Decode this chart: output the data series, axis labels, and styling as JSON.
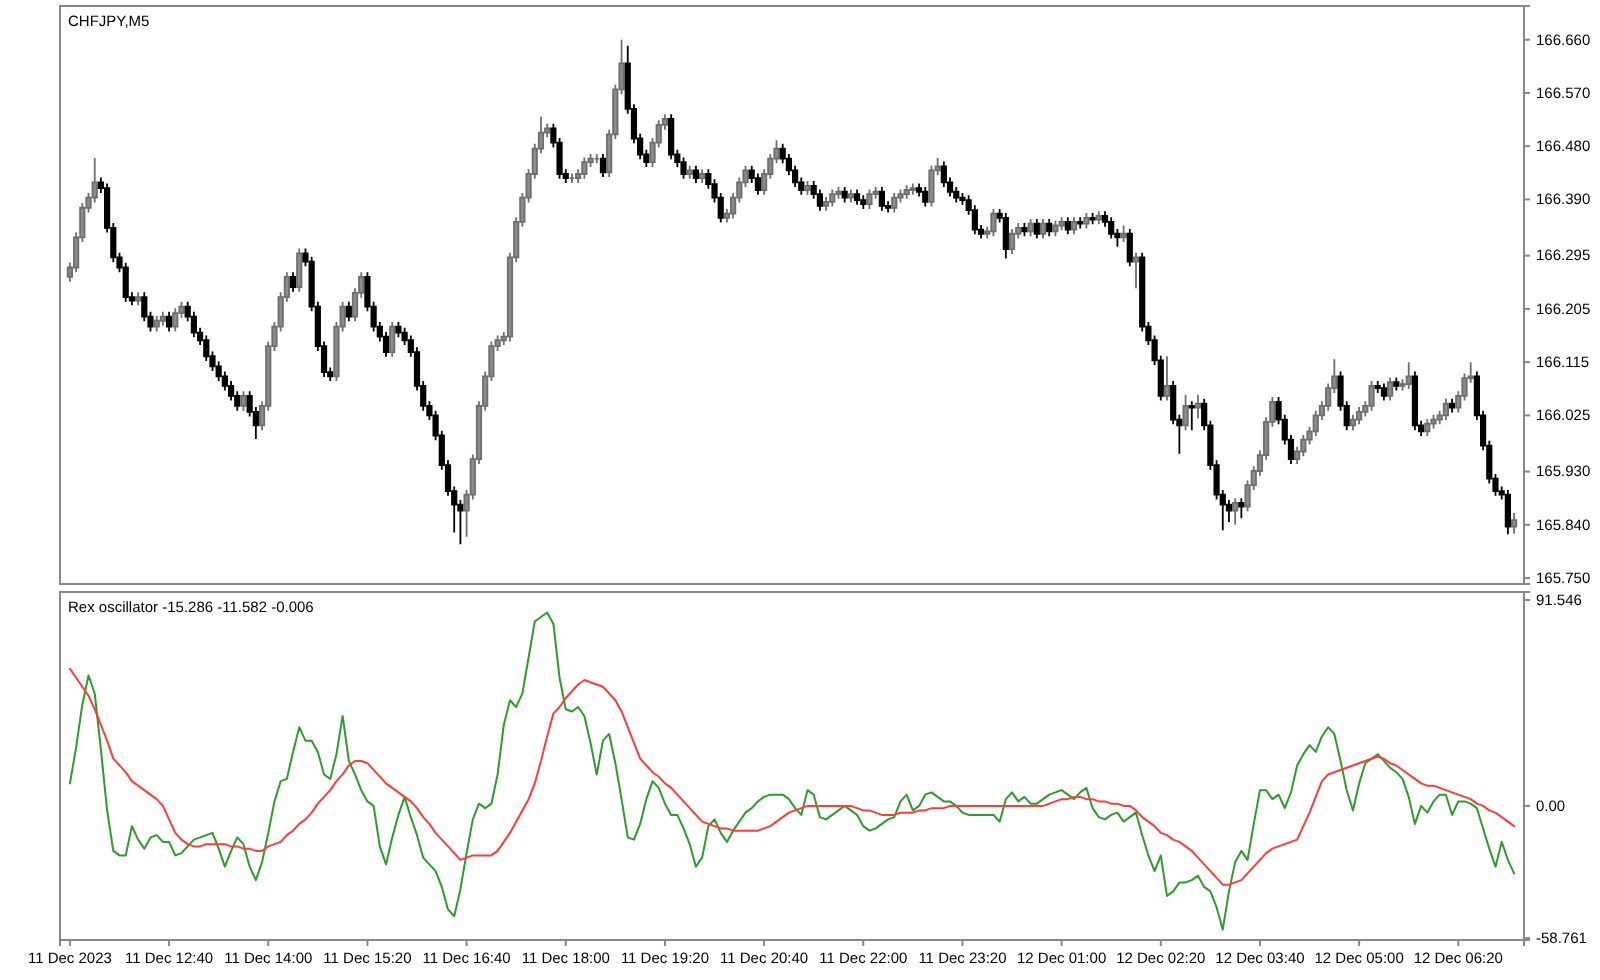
{
  "chart_data": [
    {
      "type": "candlestick",
      "title": "CHFJPY,M5",
      "tick_labels": "y",
      "categories": [
        null,
        null,
        null,
        null,
        null,
        null,
        null,
        null,
        null,
        null,
        null,
        null,
        null,
        null,
        null,
        null,
        null,
        null,
        null,
        null,
        null,
        null,
        null,
        null,
        null,
        null,
        null,
        null,
        null,
        null,
        null,
        null,
        null,
        null,
        null,
        null,
        null,
        null,
        null,
        null,
        null,
        null,
        null,
        null,
        null,
        null,
        null,
        null,
        null,
        null,
        null,
        null,
        null,
        null,
        null,
        null,
        null,
        null,
        null,
        null,
        null,
        null,
        null,
        null,
        null,
        null,
        null,
        null,
        null,
        null,
        null,
        null,
        null,
        null,
        null,
        null,
        null,
        null,
        null,
        null,
        null,
        null,
        null,
        null,
        null,
        null,
        null,
        null,
        null,
        null,
        null,
        null,
        null,
        null,
        null,
        null,
        null,
        null,
        null,
        null,
        null,
        null,
        null,
        null,
        null,
        null,
        null,
        null,
        null,
        null,
        null,
        null,
        null,
        null,
        null,
        null,
        null,
        null,
        null,
        null,
        null,
        null,
        null,
        null,
        null,
        null,
        null,
        null,
        null,
        null,
        null,
        null,
        null,
        null,
        null,
        null,
        null,
        null,
        null,
        null,
        null,
        null,
        null,
        null,
        null,
        null,
        null,
        null,
        null,
        null,
        null,
        null,
        null,
        null,
        null,
        null,
        null,
        null,
        null,
        null,
        null,
        null,
        null,
        null,
        null,
        null,
        null,
        null,
        null,
        null,
        null,
        null,
        null,
        null,
        null,
        null,
        null,
        null,
        null,
        null,
        null,
        null,
        null,
        null,
        null,
        null,
        null,
        null,
        null,
        null,
        null,
        null,
        null,
        null,
        null,
        null,
        null,
        null,
        null,
        null,
        null,
        null,
        null,
        null,
        null,
        null,
        null,
        null,
        null,
        null,
        null,
        null,
        null,
        null,
        null,
        null,
        null,
        null,
        null,
        null,
        null,
        null,
        null,
        null,
        null,
        null,
        null,
        null,
        null,
        null,
        null,
        null,
        null,
        null
      ],
      "ohlc": [
        [
          166.259,
          166.283,
          166.251,
          166.275
        ],
        [
          166.275,
          166.334,
          166.267,
          166.326
        ],
        [
          166.326,
          166.384,
          166.318,
          166.376
        ],
        [
          166.376,
          166.401,
          166.368,
          166.393
        ],
        [
          166.393,
          166.46,
          166.385,
          166.419
        ],
        [
          166.419,
          166.427,
          166.401,
          166.409
        ],
        [
          166.409,
          166.417,
          166.334,
          166.342
        ],
        [
          166.342,
          166.35,
          166.284,
          166.292
        ],
        [
          166.292,
          166.3,
          166.267,
          166.275
        ],
        [
          166.275,
          166.283,
          166.217,
          166.225
        ],
        [
          166.225,
          166.233,
          166.211,
          166.219
        ],
        [
          166.219,
          166.233,
          166.211,
          166.225
        ],
        [
          166.225,
          166.233,
          166.184,
          166.192
        ],
        [
          166.192,
          166.2,
          166.167,
          166.175
        ],
        [
          166.175,
          166.193,
          166.167,
          166.185
        ],
        [
          166.185,
          166.2,
          166.177,
          166.192
        ],
        [
          166.192,
          166.2,
          166.167,
          166.175
        ],
        [
          166.175,
          166.206,
          166.167,
          166.198
        ],
        [
          166.198,
          166.217,
          166.19,
          166.209
        ],
        [
          166.209,
          166.217,
          166.184,
          166.192
        ],
        [
          166.192,
          166.2,
          166.157,
          166.165
        ],
        [
          166.165,
          166.173,
          166.144,
          166.152
        ],
        [
          166.152,
          166.16,
          166.117,
          166.125
        ],
        [
          166.125,
          166.133,
          166.1,
          166.108
        ],
        [
          166.108,
          166.116,
          166.083,
          166.091
        ],
        [
          166.091,
          166.099,
          166.067,
          166.075
        ],
        [
          166.075,
          166.083,
          166.05,
          166.058
        ],
        [
          166.058,
          166.066,
          166.033,
          166.041
        ],
        [
          166.041,
          166.066,
          166.033,
          166.058
        ],
        [
          166.058,
          166.066,
          166.023,
          166.031
        ],
        [
          166.031,
          166.039,
          165.985,
          166.008
        ],
        [
          166.008,
          166.049,
          166.0,
          166.041
        ],
        [
          166.041,
          166.15,
          166.033,
          166.142
        ],
        [
          166.142,
          166.183,
          166.134,
          166.175
        ],
        [
          166.175,
          166.233,
          166.167,
          166.225
        ],
        [
          166.225,
          166.267,
          166.217,
          166.259
        ],
        [
          166.259,
          166.267,
          166.234,
          166.242
        ],
        [
          166.242,
          166.307,
          166.234,
          166.299
        ],
        [
          166.299,
          166.307,
          166.277,
          166.285
        ],
        [
          166.285,
          166.293,
          166.201,
          166.209
        ],
        [
          166.209,
          166.217,
          166.134,
          166.142
        ],
        [
          166.142,
          166.15,
          166.09,
          166.098
        ],
        [
          166.098,
          166.106,
          166.083,
          166.091
        ],
        [
          166.091,
          166.183,
          166.083,
          166.175
        ],
        [
          166.175,
          166.217,
          166.167,
          166.209
        ],
        [
          166.209,
          166.217,
          166.184,
          166.192
        ],
        [
          166.192,
          166.24,
          166.184,
          166.232
        ],
        [
          166.232,
          166.267,
          166.224,
          166.259
        ],
        [
          166.259,
          166.267,
          166.201,
          166.209
        ],
        [
          166.209,
          166.217,
          166.167,
          166.175
        ],
        [
          166.175,
          166.183,
          166.15,
          166.158
        ],
        [
          166.158,
          166.166,
          166.124,
          166.132
        ],
        [
          166.132,
          166.183,
          166.124,
          166.175
        ],
        [
          166.175,
          166.183,
          166.157,
          166.165
        ],
        [
          166.165,
          166.173,
          166.144,
          166.152
        ],
        [
          166.152,
          166.16,
          166.124,
          166.132
        ],
        [
          166.132,
          166.14,
          166.067,
          166.075
        ],
        [
          166.075,
          166.083,
          166.033,
          166.041
        ],
        [
          166.041,
          166.049,
          166.017,
          166.025
        ],
        [
          166.025,
          166.033,
          165.983,
          165.991
        ],
        [
          165.991,
          165.999,
          165.933,
          165.941
        ],
        [
          165.941,
          165.949,
          165.889,
          165.897
        ],
        [
          165.897,
          165.905,
          165.827,
          165.874
        ],
        [
          165.874,
          165.882,
          165.807,
          165.864
        ],
        [
          165.864,
          165.899,
          165.82,
          165.891
        ],
        [
          165.891,
          165.959,
          165.883,
          165.951
        ],
        [
          165.951,
          166.049,
          165.943,
          166.041
        ],
        [
          166.041,
          166.099,
          166.033,
          166.091
        ],
        [
          166.091,
          166.15,
          166.083,
          166.142
        ],
        [
          166.142,
          166.16,
          166.134,
          166.152
        ],
        [
          166.152,
          166.166,
          166.144,
          166.158
        ],
        [
          166.158,
          166.3,
          166.15,
          166.292
        ],
        [
          166.292,
          166.36,
          166.284,
          166.352
        ],
        [
          166.352,
          166.401,
          166.344,
          166.393
        ],
        [
          166.393,
          166.441,
          166.385,
          166.433
        ],
        [
          166.433,
          166.484,
          166.425,
          166.476
        ],
        [
          166.476,
          166.53,
          166.468,
          166.503
        ],
        [
          166.503,
          166.518,
          166.495,
          166.51
        ],
        [
          166.51,
          166.518,
          166.478,
          166.486
        ],
        [
          166.486,
          166.494,
          166.425,
          166.433
        ],
        [
          166.433,
          166.441,
          166.418,
          166.426
        ],
        [
          166.426,
          166.434,
          166.418,
          166.426
        ],
        [
          166.426,
          166.441,
          166.418,
          166.433
        ],
        [
          166.433,
          166.461,
          166.425,
          166.453
        ],
        [
          166.453,
          166.467,
          166.445,
          166.459
        ],
        [
          166.459,
          166.467,
          166.451,
          166.459
        ],
        [
          166.459,
          166.467,
          166.428,
          166.436
        ],
        [
          166.436,
          166.508,
          166.428,
          166.5
        ],
        [
          166.5,
          166.584,
          166.492,
          166.576
        ],
        [
          166.576,
          166.66,
          166.568,
          166.62
        ],
        [
          166.62,
          166.65,
          166.535,
          166.543
        ],
        [
          166.543,
          166.551,
          166.485,
          166.493
        ],
        [
          166.493,
          166.501,
          166.458,
          166.466
        ],
        [
          166.466,
          166.474,
          166.445,
          166.453
        ],
        [
          166.453,
          166.494,
          166.445,
          166.486
        ],
        [
          166.486,
          166.524,
          166.478,
          166.516
        ],
        [
          166.516,
          166.534,
          166.508,
          166.526
        ],
        [
          166.526,
          166.534,
          166.458,
          166.466
        ],
        [
          166.466,
          166.474,
          166.445,
          166.453
        ],
        [
          166.453,
          166.461,
          166.425,
          166.433
        ],
        [
          166.433,
          166.447,
          166.425,
          166.439
        ],
        [
          166.439,
          166.447,
          166.418,
          166.426
        ],
        [
          166.426,
          166.441,
          166.418,
          166.433
        ],
        [
          166.433,
          166.441,
          166.408,
          166.416
        ],
        [
          166.416,
          166.424,
          166.385,
          166.393
        ],
        [
          166.393,
          166.401,
          166.351,
          166.359
        ],
        [
          166.359,
          166.374,
          166.351,
          166.366
        ],
        [
          166.366,
          166.401,
          166.358,
          166.393
        ],
        [
          166.393,
          166.427,
          166.385,
          166.419
        ],
        [
          166.419,
          166.447,
          166.411,
          166.439
        ],
        [
          166.439,
          166.447,
          166.418,
          166.426
        ],
        [
          166.426,
          166.434,
          166.398,
          166.406
        ],
        [
          166.406,
          166.441,
          166.398,
          166.433
        ],
        [
          166.433,
          166.467,
          166.425,
          166.459
        ],
        [
          166.459,
          166.49,
          166.451,
          166.476
        ],
        [
          166.476,
          166.484,
          166.451,
          166.459
        ],
        [
          166.459,
          166.467,
          166.431,
          166.439
        ],
        [
          166.439,
          166.447,
          166.411,
          166.419
        ],
        [
          166.419,
          166.427,
          166.398,
          166.406
        ],
        [
          166.406,
          166.421,
          166.398,
          166.413
        ],
        [
          166.413,
          166.421,
          166.391,
          166.399
        ],
        [
          166.399,
          166.407,
          166.371,
          166.379
        ],
        [
          166.379,
          166.394,
          166.371,
          166.386
        ],
        [
          166.386,
          166.407,
          166.378,
          166.399
        ],
        [
          166.399,
          166.411,
          166.391,
          166.403
        ],
        [
          166.403,
          166.411,
          166.385,
          166.393
        ],
        [
          166.393,
          166.407,
          166.385,
          166.399
        ],
        [
          166.399,
          166.407,
          166.381,
          166.389
        ],
        [
          166.389,
          166.397,
          166.374,
          166.382
        ],
        [
          166.382,
          166.407,
          166.374,
          166.399
        ],
        [
          166.399,
          166.411,
          166.391,
          166.403
        ],
        [
          166.403,
          166.411,
          166.371,
          166.379
        ],
        [
          166.379,
          166.387,
          166.368,
          166.376
        ],
        [
          166.376,
          166.401,
          166.368,
          166.393
        ],
        [
          166.393,
          166.407,
          166.385,
          166.399
        ],
        [
          166.399,
          166.414,
          166.391,
          166.406
        ],
        [
          166.406,
          166.417,
          166.398,
          166.409
        ],
        [
          166.409,
          166.417,
          166.395,
          166.403
        ],
        [
          166.403,
          166.411,
          166.378,
          166.386
        ],
        [
          166.386,
          166.447,
          166.378,
          166.439
        ],
        [
          166.439,
          166.46,
          166.431,
          166.446
        ],
        [
          166.446,
          166.454,
          166.411,
          166.419
        ],
        [
          166.419,
          166.427,
          166.395,
          166.403
        ],
        [
          166.403,
          166.411,
          166.385,
          166.393
        ],
        [
          166.393,
          166.401,
          166.381,
          166.389
        ],
        [
          166.389,
          166.397,
          166.364,
          166.372
        ],
        [
          166.372,
          166.38,
          166.331,
          166.339
        ],
        [
          166.339,
          166.347,
          166.324,
          166.332
        ],
        [
          166.332,
          166.344,
          166.324,
          166.336
        ],
        [
          166.336,
          166.374,
          166.328,
          166.366
        ],
        [
          166.366,
          166.374,
          166.351,
          166.359
        ],
        [
          166.359,
          166.367,
          166.29,
          166.306
        ],
        [
          166.306,
          166.34,
          166.298,
          166.332
        ],
        [
          166.332,
          166.35,
          166.324,
          166.342
        ],
        [
          166.342,
          166.35,
          166.328,
          166.336
        ],
        [
          166.336,
          166.357,
          166.328,
          166.349
        ],
        [
          166.349,
          166.357,
          166.324,
          166.332
        ],
        [
          166.332,
          166.357,
          166.324,
          166.349
        ],
        [
          166.349,
          166.357,
          166.328,
          166.336
        ],
        [
          166.336,
          166.354,
          166.328,
          166.346
        ],
        [
          166.346,
          166.36,
          166.338,
          166.352
        ],
        [
          166.352,
          166.36,
          166.331,
          166.339
        ],
        [
          166.339,
          166.36,
          166.331,
          166.352
        ],
        [
          166.352,
          166.36,
          166.341,
          166.349
        ],
        [
          166.349,
          166.367,
          166.341,
          166.359
        ],
        [
          166.359,
          166.367,
          166.348,
          166.356
        ],
        [
          166.356,
          166.37,
          166.348,
          166.362
        ],
        [
          166.362,
          166.37,
          166.344,
          166.352
        ],
        [
          166.352,
          166.36,
          166.324,
          166.332
        ],
        [
          166.332,
          166.34,
          166.31,
          166.326
        ],
        [
          166.326,
          166.346,
          166.318,
          166.332
        ],
        [
          166.332,
          166.34,
          166.277,
          166.285
        ],
        [
          166.285,
          166.3,
          166.24,
          166.292
        ],
        [
          166.292,
          166.3,
          166.167,
          166.175
        ],
        [
          166.175,
          166.183,
          166.144,
          166.152
        ],
        [
          166.152,
          166.16,
          166.11,
          166.118
        ],
        [
          166.118,
          166.126,
          166.05,
          166.058
        ],
        [
          166.058,
          166.125,
          166.05,
          166.075
        ],
        [
          166.075,
          166.083,
          166.01,
          166.018
        ],
        [
          166.018,
          166.026,
          165.96,
          166.008
        ],
        [
          166.008,
          166.06,
          166.0,
          166.041
        ],
        [
          166.041,
          166.049,
          166.0,
          166.038
        ],
        [
          166.038,
          166.06,
          166.02,
          166.045
        ],
        [
          166.045,
          166.053,
          166.0,
          166.008
        ],
        [
          166.008,
          166.016,
          165.933,
          165.941
        ],
        [
          165.941,
          165.949,
          165.883,
          165.891
        ],
        [
          165.891,
          165.899,
          165.831,
          165.874
        ],
        [
          165.874,
          165.882,
          165.845,
          165.864
        ],
        [
          165.864,
          165.885,
          165.84,
          165.877
        ],
        [
          165.877,
          165.885,
          165.851,
          165.871
        ],
        [
          165.871,
          165.915,
          165.863,
          165.907
        ],
        [
          165.907,
          165.939,
          165.899,
          165.931
        ],
        [
          165.931,
          165.966,
          165.923,
          165.958
        ],
        [
          165.958,
          166.022,
          165.95,
          166.014
        ],
        [
          166.014,
          166.056,
          166.006,
          166.048
        ],
        [
          166.048,
          166.056,
          166.01,
          166.018
        ],
        [
          166.018,
          166.026,
          165.976,
          165.984
        ],
        [
          165.984,
          165.992,
          165.943,
          165.951
        ],
        [
          165.951,
          165.972,
          165.943,
          165.964
        ],
        [
          165.964,
          165.992,
          165.956,
          165.984
        ],
        [
          165.984,
          166.006,
          165.976,
          165.998
        ],
        [
          165.998,
          166.033,
          165.99,
          166.025
        ],
        [
          166.025,
          166.049,
          166.017,
          166.041
        ],
        [
          166.041,
          166.079,
          166.033,
          166.071
        ],
        [
          166.071,
          166.12,
          166.063,
          166.091
        ],
        [
          166.091,
          166.099,
          166.033,
          166.041
        ],
        [
          166.041,
          166.049,
          166.0,
          166.008
        ],
        [
          166.008,
          166.026,
          166.0,
          166.018
        ],
        [
          166.018,
          166.039,
          166.01,
          166.031
        ],
        [
          166.031,
          166.049,
          166.023,
          166.041
        ],
        [
          166.041,
          166.083,
          166.033,
          166.075
        ],
        [
          166.075,
          166.083,
          166.063,
          166.071
        ],
        [
          166.071,
          166.079,
          166.05,
          166.058
        ],
        [
          166.058,
          166.089,
          166.05,
          166.081
        ],
        [
          166.081,
          166.089,
          166.067,
          166.075
        ],
        [
          166.075,
          166.086,
          166.067,
          166.078
        ],
        [
          166.078,
          166.115,
          166.07,
          166.091
        ],
        [
          166.091,
          166.099,
          166.0,
          166.008
        ],
        [
          166.008,
          166.016,
          165.99,
          165.998
        ],
        [
          165.998,
          166.019,
          165.99,
          166.011
        ],
        [
          166.011,
          166.026,
          166.003,
          166.018
        ],
        [
          166.018,
          166.033,
          166.01,
          166.025
        ],
        [
          166.025,
          166.053,
          166.017,
          166.045
        ],
        [
          166.045,
          166.053,
          166.03,
          166.038
        ],
        [
          166.038,
          166.066,
          166.03,
          166.058
        ],
        [
          166.058,
          166.096,
          166.05,
          166.088
        ],
        [
          166.088,
          166.115,
          166.08,
          166.091
        ],
        [
          166.091,
          166.099,
          166.017,
          166.025
        ],
        [
          166.025,
          166.033,
          165.966,
          165.974
        ],
        [
          165.974,
          165.982,
          165.91,
          165.918
        ],
        [
          165.918,
          165.926,
          165.889,
          165.897
        ],
        [
          165.897,
          165.905,
          165.883,
          165.891
        ],
        [
          165.891,
          165.899,
          165.824,
          165.837
        ],
        [
          165.837,
          165.86,
          165.825,
          165.848
        ]
      ],
      "ylim": [
        165.74,
        166.717
      ],
      "yticks": [
        {
          "value": 166.66,
          "label": "166.660"
        },
        {
          "value": 166.57,
          "label": "166.570"
        },
        {
          "value": 166.48,
          "label": "166.480"
        },
        {
          "value": 166.39,
          "label": "166.390"
        },
        166.295,
        166.205,
        166.115,
        166.025,
        {
          "value": 165.93,
          "label": "165.930"
        },
        {
          "value": 165.84,
          "label": "165.840"
        },
        {
          "value": 165.75,
          "label": "165.750"
        }
      ]
    },
    {
      "type": "line",
      "title": "Rex oscillator -15.286 -11.582 -0.006",
      "categories": [
        "11 Dec 2023",
        null,
        null,
        null,
        null,
        null,
        null,
        null,
        null,
        null,
        null,
        null,
        null,
        null,
        null,
        null,
        "11 Dec 12:40",
        null,
        null,
        null,
        null,
        null,
        null,
        null,
        null,
        null,
        null,
        null,
        null,
        null,
        null,
        null,
        "11 Dec 14:00",
        null,
        null,
        null,
        null,
        null,
        null,
        null,
        null,
        null,
        null,
        null,
        null,
        null,
        null,
        null,
        "11 Dec 15:20",
        null,
        null,
        null,
        null,
        null,
        null,
        null,
        null,
        null,
        null,
        null,
        null,
        null,
        null,
        null,
        "11 Dec 16:40",
        null,
        null,
        null,
        null,
        null,
        null,
        null,
        null,
        null,
        null,
        null,
        null,
        null,
        null,
        null,
        "11 Dec 18:00",
        null,
        null,
        null,
        null,
        null,
        null,
        null,
        null,
        null,
        null,
        null,
        null,
        null,
        null,
        null,
        "11 Dec 19:20",
        null,
        null,
        null,
        null,
        null,
        null,
        null,
        null,
        null,
        null,
        null,
        null,
        null,
        null,
        null,
        "11 Dec 20:40",
        null,
        null,
        null,
        null,
        null,
        null,
        null,
        null,
        null,
        null,
        null,
        null,
        null,
        null,
        null,
        "11 Dec 22:00",
        null,
        null,
        null,
        null,
        null,
        null,
        null,
        null,
        null,
        null,
        null,
        null,
        null,
        null,
        null,
        "11 Dec 23:20",
        null,
        null,
        null,
        null,
        null,
        null,
        null,
        null,
        null,
        null,
        null,
        null,
        null,
        null,
        null,
        "12 Dec 01:00",
        null,
        null,
        null,
        null,
        null,
        null,
        null,
        null,
        null,
        null,
        null,
        null,
        null,
        null,
        null,
        "12 Dec 02:20",
        null,
        null,
        null,
        null,
        null,
        null,
        null,
        null,
        null,
        null,
        null,
        null,
        null,
        null,
        null,
        "12 Dec 03:40",
        null,
        null,
        null,
        null,
        null,
        null,
        null,
        null,
        null,
        null,
        null,
        null,
        null,
        null,
        null,
        "12 Dec 05:00",
        null,
        null,
        null,
        null,
        null,
        null,
        null,
        null,
        null,
        null,
        null,
        null,
        null,
        null,
        null,
        "12 Dec 06:20",
        null,
        null,
        null,
        null,
        null,
        null,
        null,
        null,
        null
      ],
      "series": [
        {
          "color": "#2e9b2e",
          "values": [
            10,
            26,
            45,
            58,
            50,
            25,
            -2,
            -20,
            -22,
            -22,
            -9,
            -15,
            -19,
            -14,
            -13,
            -16,
            -16,
            -22,
            -21,
            -18,
            -15,
            -14,
            -13,
            -12,
            -19,
            -27,
            -20,
            -14,
            -17,
            -27,
            -33,
            -25,
            -12,
            2,
            11,
            12,
            24,
            35,
            29,
            29,
            24,
            14,
            12,
            23,
            40,
            20,
            14,
            7,
            2,
            0,
            -18,
            -26,
            -14,
            -4,
            4,
            -5,
            -13,
            -23,
            -26,
            -29,
            -36,
            -46,
            -49,
            -37,
            -21,
            -6,
            1,
            -1,
            1,
            14,
            36,
            47,
            44,
            50,
            66,
            82,
            84,
            86,
            81,
            57,
            43,
            42,
            44,
            40,
            28,
            14,
            29,
            32,
            19,
            3,
            -14,
            -15,
            -8,
            3,
            11,
            8,
            1,
            -4,
            -4,
            -10,
            -17,
            -27,
            -23,
            -9,
            -6,
            -12,
            -16,
            -11,
            -7,
            -3,
            -1,
            2,
            4,
            5,
            5,
            5,
            3,
            -1,
            -4,
            7,
            5,
            -5,
            -6,
            -4,
            -2,
            0,
            -2,
            -4,
            -9,
            -11,
            -10,
            -8,
            -6,
            -5,
            2,
            5,
            -2,
            0,
            5,
            6,
            4,
            2,
            2,
            0,
            -3,
            -4,
            -4,
            -4,
            -4,
            -4,
            -7,
            3,
            6,
            2,
            4,
            1,
            1,
            3,
            5,
            6,
            7,
            5,
            3,
            6,
            8,
            -1,
            -5,
            -6,
            -4,
            -3,
            -7,
            -5,
            -3,
            -13,
            -22,
            -29,
            -22,
            -40,
            -38,
            -34,
            -34,
            -33,
            -31,
            -36,
            -38,
            -45,
            -55,
            -38,
            -25,
            -20,
            -24,
            -8,
            7,
            7,
            3,
            5,
            -1,
            6,
            18,
            23,
            27,
            24,
            31,
            35,
            32,
            20,
            7,
            -2,
            10,
            19,
            21,
            23,
            20,
            17,
            15,
            12,
            4,
            -8,
            0,
            -3,
            2,
            5,
            5,
            -4,
            2,
            2,
            1,
            -1,
            -10,
            -19,
            -27,
            -16,
            -24,
            -30
          ]
        },
        {
          "color": "#ff3b3b",
          "values": [
            61,
            57,
            53,
            49,
            43,
            36,
            29,
            21,
            18,
            15,
            11,
            9,
            7,
            5,
            3,
            0,
            -6,
            -12,
            -15,
            -17,
            -18,
            -18,
            -17,
            -17,
            -17,
            -17,
            -18,
            -18,
            -19,
            -19,
            -20,
            -20,
            -18,
            -17,
            -16,
            -13,
            -11,
            -8,
            -6,
            -3,
            1,
            4,
            7,
            11,
            14,
            18,
            20,
            20,
            19,
            16,
            13,
            10,
            8,
            6,
            4,
            2,
            -1,
            -5,
            -8,
            -12,
            -15,
            -18,
            -21,
            -24,
            -23,
            -22,
            -22,
            -22,
            -22,
            -20,
            -16,
            -12,
            -7,
            -2,
            3,
            10,
            20,
            31,
            41,
            44,
            48,
            51,
            54,
            56,
            55,
            54,
            53,
            50,
            47,
            42,
            35,
            28,
            21,
            18,
            15,
            13,
            10,
            8,
            5,
            2,
            -1,
            -4,
            -7,
            -8,
            -9,
            -10,
            -10,
            -11,
            -11,
            -11,
            -11,
            -11,
            -10,
            -9,
            -7,
            -5,
            -3,
            -2,
            -1,
            0,
            0,
            0,
            0,
            0,
            0,
            0,
            0,
            -1,
            -2,
            -2,
            -3,
            -4,
            -4,
            -4,
            -3,
            -3,
            -3,
            -2,
            -2,
            -1,
            -1,
            -1,
            0,
            0,
            0,
            0,
            0,
            0,
            0,
            0,
            0,
            0,
            0,
            0,
            0,
            0,
            0,
            0,
            1,
            2,
            3,
            3,
            4,
            4,
            3,
            3,
            2,
            2,
            1,
            1,
            0,
            0,
            -2,
            -5,
            -7,
            -9,
            -12,
            -13,
            -15,
            -16,
            -18,
            -20,
            -23,
            -26,
            -29,
            -32,
            -35,
            -35,
            -34,
            -33,
            -30,
            -27,
            -24,
            -21,
            -19,
            -18,
            -17,
            -16,
            -15,
            -9,
            -3,
            4,
            11,
            14,
            15,
            16,
            17,
            18,
            19,
            20,
            21,
            22,
            21,
            19,
            18,
            16,
            14,
            12,
            10,
            9,
            9,
            8,
            7,
            6,
            5,
            4,
            3,
            1,
            0,
            -2,
            -3,
            -5,
            -7,
            -9
          ]
        }
      ],
      "ylim": [
        -59.6,
        95.1
      ],
      "yticks": [
        91.546,
        {
          "value": 0,
          "label": "0.00"
        },
        -58.761
      ]
    }
  ]
}
